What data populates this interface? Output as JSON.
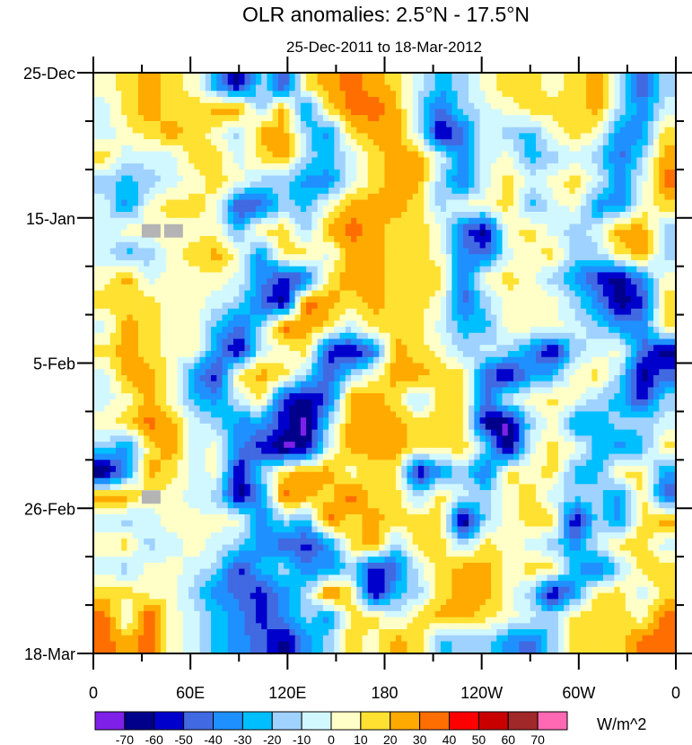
{
  "chart_data": {
    "type": "heatmap",
    "title": "OLR anomalies: 2.5°N - 17.5°N",
    "subtitle": "25-Dec-2011 to 18-Mar-2012",
    "x_ticks": [
      "0",
      "60E",
      "120E",
      "180",
      "120W",
      "60W",
      "0"
    ],
    "x_range_deg_east": [
      0,
      360
    ],
    "y_ticks": [
      "25-Dec",
      "15-Jan",
      "5-Feb",
      "26-Feb",
      "18-Mar"
    ],
    "y_range": [
      "25-Dec-2011",
      "18-Mar-2012"
    ],
    "colorbar": {
      "unit": "W/m^2",
      "labels": [
        "-70",
        "-60",
        "-50",
        "-40",
        "-30",
        "-20",
        "-10",
        "0",
        "10",
        "20",
        "30",
        "40",
        "50",
        "60",
        "70"
      ],
      "colors": [
        "#7f20e8",
        "#00008b",
        "#0000cd",
        "#4169e1",
        "#1e90ff",
        "#00bfff",
        "#a0d2ff",
        "#d2f8ff",
        "#ffffc8",
        "#ffe132",
        "#ffaa00",
        "#ff6e00",
        "#ff0000",
        "#c80000",
        "#a02828",
        "#ff69b4"
      ],
      "missing_color": "#b4b4b4"
    },
    "grid": [
      "89a9841629aba975689989a626",
      "79a99aa6a49bba63678999a647",
      "789a986aa649aa713765898449",
      "97779979a6579aa7478567636a",
      "6567898664479aa6379789747b",
      "74899823658aaa968895784489",
      "78xx885996aba9983189767aa6",
      "75689a84997aa99843789669a6",
      "8a788874239aa9993898642148",
      "999887631ba9a9983688864129",
      "7a988536ba9799975588876449",
      "9a98841789213a986764167831",
      "7aa8429a96368aa99314589613",
      "78a85479213aa9699378986526",
      "89ba7644206aaa999106845667",
      "649a7842017aaa999607985459",
      "04a978169aa899146398955994",
      "aax87614ba9b99697689766493",
      "7678888465b9a999068991649a",
      "896787643249a6996987647997",
      "7688762564462379aa89953699",
      "9988643246b91569aa86149979",
      "b7c875424649979aa98769998b",
      "bab8754314698a9566436999bb"
    ]
  }
}
